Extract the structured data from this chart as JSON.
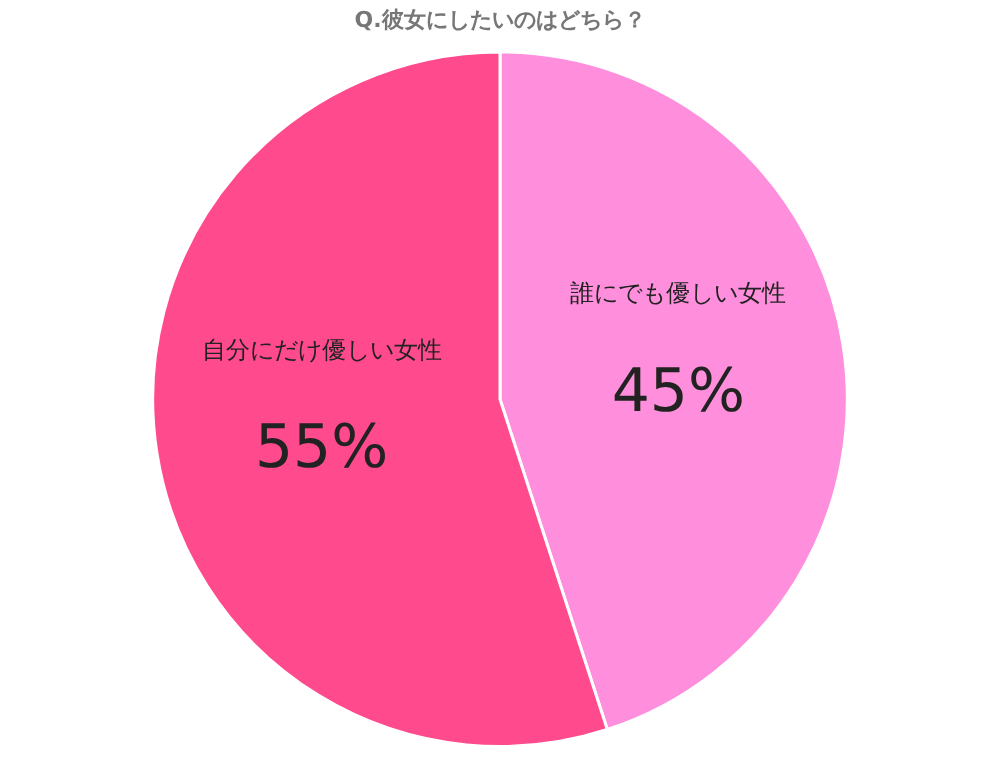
{
  "chart_data": {
    "type": "pie",
    "title": "Q.彼女にしたいのはどちら？",
    "categories": [
      "誰にでも優しい女性",
      "自分にだけ優しい女性"
    ],
    "values": [
      45,
      55
    ],
    "colors": [
      "#ff8fdc",
      "#ff4a8d"
    ],
    "value_labels": [
      "45%",
      "55%"
    ],
    "legend": false
  }
}
